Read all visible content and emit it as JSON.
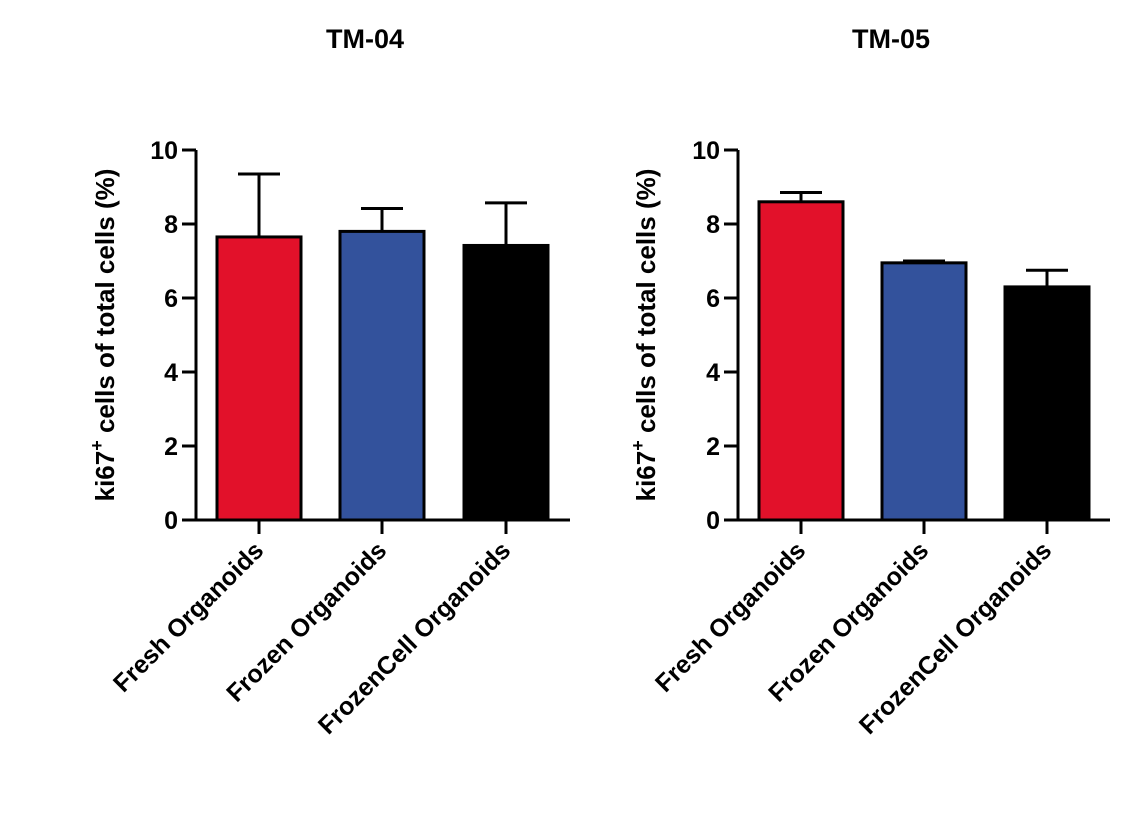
{
  "colors": {
    "fresh": "#E2112A",
    "frozen": "#33529C",
    "frozencell": "#000000",
    "axis": "#000000"
  },
  "chart_data": [
    {
      "type": "bar",
      "title": "TM-04",
      "ylabel_main": "ki67",
      "ylabel_sup": "+",
      "ylabel_rest": " cells of total cells (%)",
      "categories": [
        "Fresh Organoids",
        "Frozen Organoids",
        "FrozenCell Organoids"
      ],
      "values": [
        7.65,
        7.8,
        7.42
      ],
      "errors": [
        1.7,
        0.62,
        1.15
      ],
      "ylim": [
        0,
        10
      ],
      "yticks": [
        "0",
        "2",
        "4",
        "6",
        "8",
        "10"
      ],
      "grid": false,
      "legend": "none"
    },
    {
      "type": "bar",
      "title": "TM-05",
      "ylabel_main": "ki67",
      "ylabel_sup": "+",
      "ylabel_rest": " cells of total cells (%)",
      "categories": [
        "Fresh Organoids",
        "Frozen Organoids",
        "FrozenCell Organoids"
      ],
      "values": [
        8.6,
        6.95,
        6.3
      ],
      "errors": [
        0.25,
        0.05,
        0.45
      ],
      "ylim": [
        0,
        10
      ],
      "yticks": [
        "0",
        "2",
        "4",
        "6",
        "8",
        "10"
      ],
      "grid": false,
      "legend": "none"
    }
  ]
}
